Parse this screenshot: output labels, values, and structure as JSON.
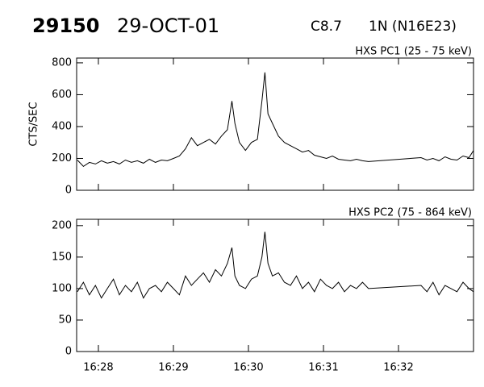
{
  "header": {
    "event": "29150",
    "date": "29-OCT-01",
    "goes_class": "C8.7",
    "location": "1N (N16E23)"
  },
  "chart_data": [
    {
      "type": "line",
      "title": "HXS PC1 (25 - 75 keV)",
      "ylabel": "CTS/SEC",
      "color": "#000000",
      "x": [
        27.72,
        27.8,
        27.88,
        27.96,
        28.04,
        28.12,
        28.2,
        28.28,
        28.36,
        28.44,
        28.52,
        28.6,
        28.68,
        28.76,
        28.84,
        28.92,
        29.0,
        29.08,
        29.16,
        29.24,
        29.32,
        29.4,
        29.48,
        29.56,
        29.64,
        29.72,
        29.78,
        29.82,
        29.88,
        29.96,
        30.04,
        30.12,
        30.18,
        30.22,
        30.26,
        30.32,
        30.4,
        30.48,
        30.56,
        30.64,
        30.72,
        30.8,
        30.88,
        30.96,
        31.04,
        31.12,
        31.2,
        31.28,
        31.36,
        31.44,
        31.52,
        31.6,
        32.3,
        32.38,
        32.46,
        32.54,
        32.62,
        32.7,
        32.78,
        32.86,
        32.94,
        33.0
      ],
      "values": [
        190,
        150,
        175,
        165,
        185,
        170,
        180,
        165,
        190,
        175,
        185,
        170,
        195,
        175,
        190,
        185,
        200,
        215,
        260,
        330,
        280,
        300,
        320,
        290,
        340,
        380,
        560,
        420,
        300,
        250,
        300,
        320,
        560,
        740,
        480,
        420,
        340,
        300,
        280,
        260,
        240,
        250,
        220,
        210,
        200,
        215,
        195,
        190,
        185,
        195,
        185,
        180,
        205,
        190,
        200,
        185,
        210,
        195,
        190,
        215,
        205,
        250
      ],
      "xlim": [
        27.71,
        33.0
      ],
      "ylim": [
        0,
        830
      ],
      "yticks": [
        0,
        200,
        400,
        600,
        800
      ]
    },
    {
      "type": "line",
      "title": "HXS PC2 (75 - 864 keV)",
      "color": "#000000",
      "x": [
        27.72,
        27.8,
        27.88,
        27.96,
        28.04,
        28.12,
        28.2,
        28.28,
        28.36,
        28.44,
        28.52,
        28.6,
        28.68,
        28.76,
        28.84,
        28.92,
        29.0,
        29.08,
        29.16,
        29.24,
        29.32,
        29.4,
        29.48,
        29.56,
        29.64,
        29.72,
        29.78,
        29.82,
        29.88,
        29.96,
        30.04,
        30.12,
        30.18,
        30.22,
        30.26,
        30.32,
        30.4,
        30.48,
        30.56,
        30.64,
        30.72,
        30.8,
        30.88,
        30.96,
        31.04,
        31.12,
        31.2,
        31.28,
        31.36,
        31.44,
        31.52,
        31.6,
        32.3,
        32.38,
        32.46,
        32.54,
        32.62,
        32.7,
        32.78,
        32.86,
        32.94,
        33.0
      ],
      "values": [
        95,
        110,
        90,
        105,
        85,
        100,
        115,
        90,
        105,
        95,
        110,
        85,
        100,
        105,
        95,
        110,
        100,
        90,
        120,
        105,
        115,
        125,
        110,
        130,
        120,
        140,
        165,
        120,
        105,
        100,
        115,
        120,
        150,
        190,
        140,
        120,
        125,
        110,
        105,
        120,
        100,
        110,
        95,
        115,
        105,
        100,
        110,
        95,
        105,
        100,
        110,
        100,
        105,
        95,
        110,
        90,
        105,
        100,
        95,
        110,
        100,
        95
      ],
      "xlim": [
        27.71,
        33.0
      ],
      "ylim": [
        0,
        210
      ],
      "yticks": [
        0,
        50,
        100,
        150,
        200
      ],
      "xticks": [
        {
          "value": 28,
          "label": "16:28"
        },
        {
          "value": 29,
          "label": "16:29"
        },
        {
          "value": 30,
          "label": "16:30"
        },
        {
          "value": 31,
          "label": "16:31"
        },
        {
          "value": 32,
          "label": "16:32"
        }
      ]
    }
  ]
}
